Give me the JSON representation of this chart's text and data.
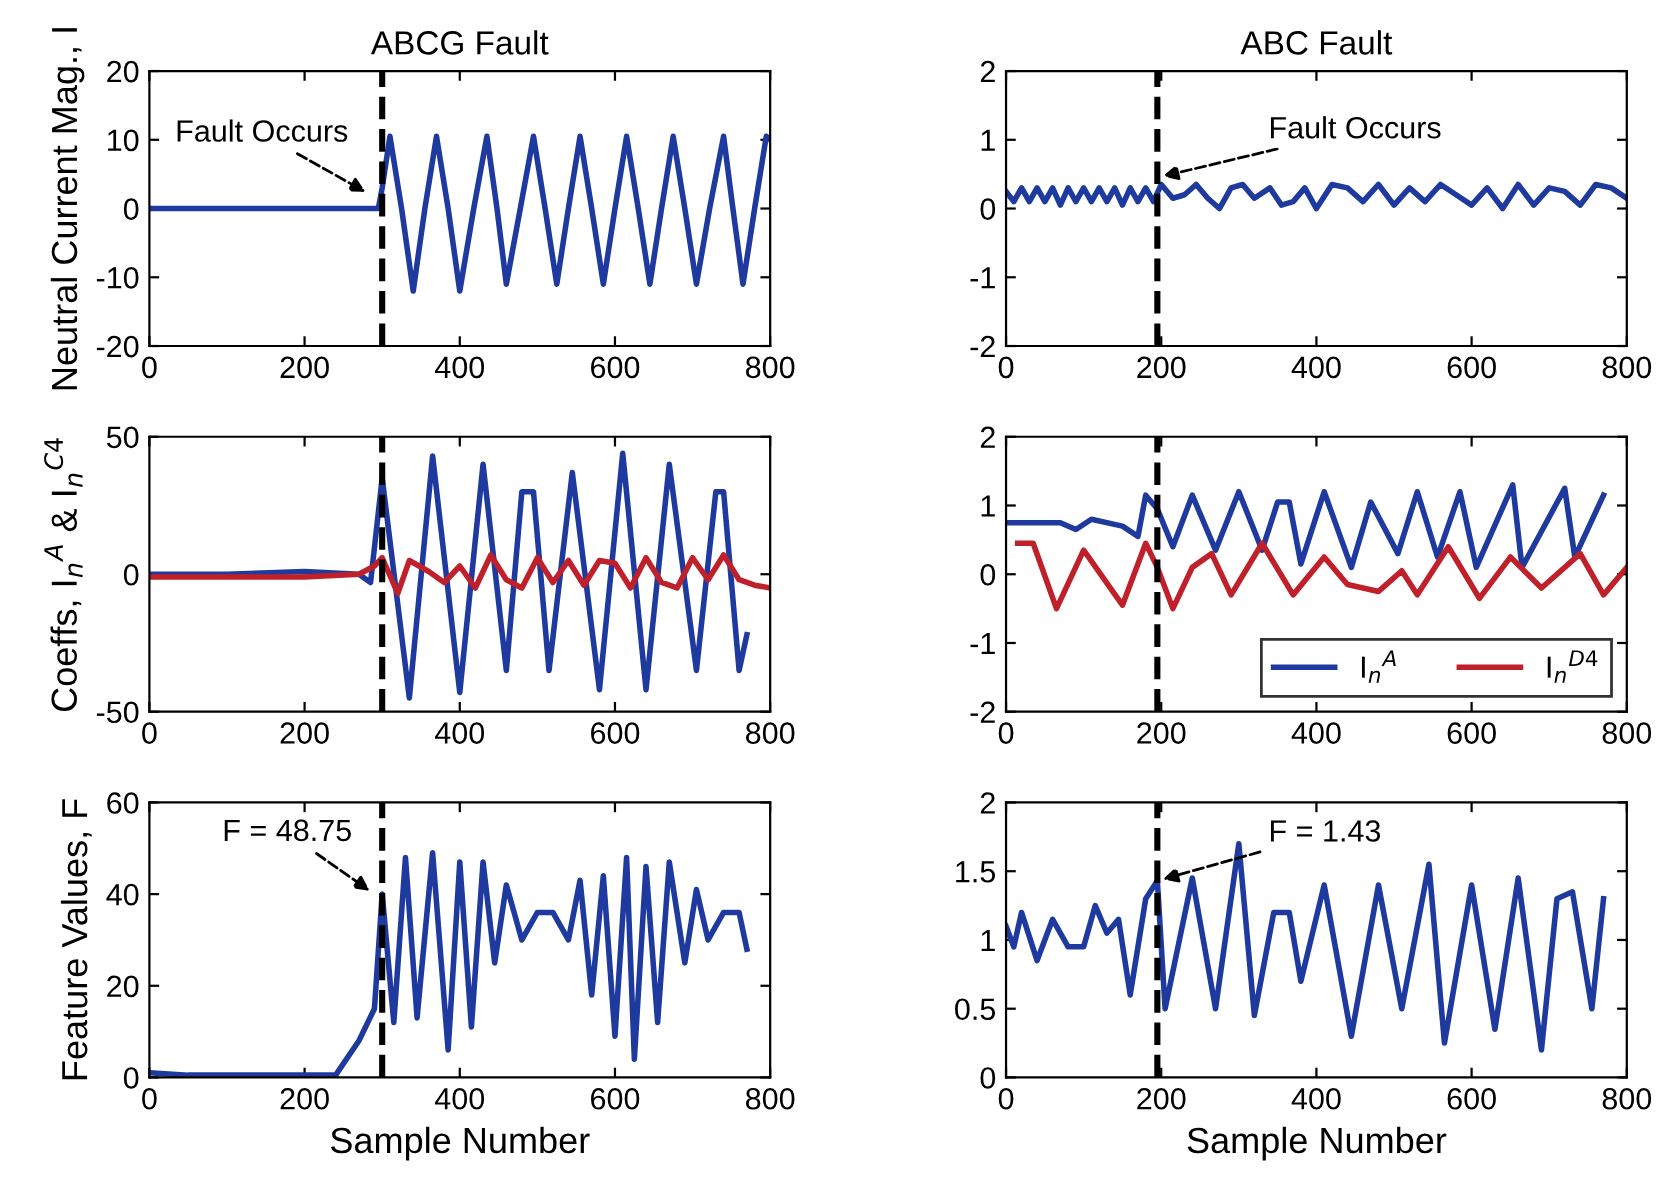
{
  "chart_data": [
    {
      "type": "line",
      "title": "ABCG Fault",
      "ylabel": "Neutral Current Mag., I",
      "xlim": [
        0,
        800
      ],
      "ylim": [
        -20,
        20
      ],
      "xticks": [
        0,
        200,
        400,
        600,
        800
      ],
      "yticks": [
        -20,
        -10,
        0,
        10,
        20
      ],
      "grid": false,
      "legend": false,
      "series": [
        {
          "color": "#1f3a9e",
          "x": [
            0,
            100,
            200,
            295,
            300,
            310,
            325,
            340,
            355,
            370,
            385,
            400,
            418,
            435,
            448,
            460,
            478,
            495,
            510,
            525,
            540,
            555,
            570,
            585,
            600,
            615,
            630,
            645,
            660,
            675,
            690,
            705,
            722,
            740,
            752,
            765,
            780,
            795,
            800
          ],
          "values": [
            0,
            0,
            0,
            0,
            3,
            10.5,
            0,
            -12,
            0,
            10.5,
            0,
            -12,
            0,
            10.5,
            0,
            -11,
            0,
            10.5,
            0,
            -11,
            0,
            10.5,
            0,
            -11,
            0,
            10.5,
            0,
            -11,
            0,
            10.5,
            0,
            -11,
            0,
            10.5,
            0,
            -11,
            0,
            10.5,
            10
          ]
        }
      ],
      "ref_lines": [
        {
          "axis": "x",
          "value": 300,
          "color": "#000000",
          "line_style": "dashed"
        }
      ],
      "annotations": [
        {
          "text": "Fault Occurs",
          "x": 285,
          "y": 2
        }
      ]
    },
    {
      "type": "line",
      "title": "ABC Fault",
      "xlim": [
        0,
        800
      ],
      "ylim": [
        -2,
        2
      ],
      "xticks": [
        0,
        200,
        400,
        600,
        800
      ],
      "yticks": [
        -2,
        -1,
        0,
        1,
        2
      ],
      "grid": false,
      "legend": false,
      "series": [
        {
          "color": "#1f3a9e",
          "x": [
            0,
            10,
            20,
            30,
            40,
            50,
            60,
            70,
            80,
            90,
            100,
            110,
            120,
            130,
            140,
            150,
            160,
            170,
            180,
            190,
            200,
            215,
            230,
            245,
            260,
            275,
            290,
            305,
            320,
            340,
            355,
            370,
            385,
            400,
            420,
            440,
            460,
            480,
            500,
            520,
            540,
            560,
            580,
            600,
            620,
            640,
            660,
            680,
            700,
            720,
            740,
            760,
            780,
            800
          ],
          "values": [
            0.25,
            0.1,
            0.3,
            0.1,
            0.3,
            0.1,
            0.3,
            0.05,
            0.3,
            0.1,
            0.3,
            0.1,
            0.3,
            0.1,
            0.3,
            0.05,
            0.3,
            0.1,
            0.3,
            0.1,
            0.35,
            0.15,
            0.2,
            0.35,
            0.15,
            0.0,
            0.3,
            0.35,
            0.15,
            0.3,
            0.05,
            0.1,
            0.3,
            0.0,
            0.35,
            0.3,
            0.1,
            0.35,
            0.05,
            0.3,
            0.1,
            0.35,
            0.2,
            0.05,
            0.3,
            0.0,
            0.35,
            0.05,
            0.3,
            0.25,
            0.05,
            0.35,
            0.3,
            0.15
          ]
        }
      ],
      "ref_lines": [
        {
          "axis": "x",
          "value": 195,
          "color": "#000000",
          "line_style": "dashed"
        }
      ],
      "annotations": [
        {
          "text": "Fault Occurs",
          "x": 195,
          "y": 0.45
        }
      ]
    },
    {
      "type": "line",
      "ylabel": "Coeffs, I$_{n}$$^{A}$ & I$_{n}$$^{C4}$",
      "xlim": [
        0,
        800
      ],
      "ylim": [
        -50,
        50
      ],
      "xticks": [
        0,
        200,
        400,
        600,
        800
      ],
      "yticks": [
        -50,
        0,
        50
      ],
      "grid": false,
      "legend": false,
      "series": [
        {
          "color": "#1f3a9e",
          "x": [
            0,
            100,
            200,
            270,
            285,
            300,
            335,
            365,
            400,
            430,
            460,
            480,
            495,
            515,
            545,
            580,
            610,
            640,
            670,
            705,
            730,
            740,
            760,
            770
          ],
          "values": [
            0,
            0,
            1,
            0,
            -3,
            35,
            -45,
            43,
            -43,
            40,
            -35,
            30,
            30,
            -35,
            37,
            -42,
            44,
            -42,
            40,
            -35,
            30,
            30,
            -35,
            -22
          ]
        },
        {
          "color": "#c0202a",
          "x": [
            0,
            100,
            200,
            270,
            290,
            300,
            320,
            335,
            360,
            380,
            400,
            420,
            440,
            460,
            480,
            500,
            520,
            540,
            560,
            580,
            600,
            620,
            640,
            660,
            680,
            700,
            720,
            740,
            760,
            780,
            800
          ],
          "values": [
            -1,
            -1,
            -1,
            0,
            3,
            6,
            -7,
            5,
            1,
            -3,
            3,
            -5,
            7,
            -2,
            -5,
            6,
            -3,
            5,
            -4,
            5,
            4,
            -5,
            6,
            -3,
            -5,
            6,
            -2,
            7,
            -2,
            -4,
            -5
          ]
        }
      ],
      "ref_lines": [
        {
          "axis": "x",
          "value": 300,
          "color": "#000000",
          "line_style": "dashed"
        }
      ]
    },
    {
      "type": "line",
      "xlim": [
        0,
        800
      ],
      "ylim": [
        -2,
        2
      ],
      "xticks": [
        0,
        200,
        400,
        600,
        800
      ],
      "yticks": [
        -2,
        -1,
        0,
        1,
        2
      ],
      "grid": false,
      "legend": "lower right",
      "series": [
        {
          "name": "I$_{n}$$^{A}$",
          "color": "#1f3a9e",
          "x": [
            0,
            70,
            90,
            110,
            150,
            170,
            180,
            195,
            215,
            240,
            270,
            300,
            330,
            350,
            365,
            380,
            410,
            445,
            470,
            505,
            530,
            556,
            585,
            606,
            653,
            665,
            720,
            733,
            770
          ],
          "values": [
            0.75,
            0.75,
            0.65,
            0.8,
            0.7,
            0.55,
            1.15,
            0.95,
            0.4,
            1.15,
            0.35,
            1.2,
            0.35,
            1.05,
            1.05,
            0.15,
            1.2,
            0.1,
            1.05,
            0.3,
            1.2,
            0.25,
            1.2,
            0.1,
            1.3,
            0.1,
            1.25,
            0.25,
            1.15
          ]
        },
        {
          "name": "I$_{n}$$^{D4}$",
          "color": "#c0202a",
          "x": [
            15,
            35,
            65,
            100,
            150,
            180,
            195,
            215,
            240,
            265,
            290,
            330,
            370,
            410,
            440,
            480,
            510,
            530,
            570,
            610,
            650,
            690,
            740,
            770,
            800
          ],
          "values": [
            0.45,
            0.45,
            -0.5,
            0.35,
            -0.45,
            0.45,
            0.1,
            -0.5,
            0.1,
            0.3,
            -0.3,
            0.45,
            -0.3,
            0.25,
            -0.15,
            -0.25,
            0.05,
            -0.3,
            0.4,
            -0.35,
            0.25,
            -0.2,
            0.3,
            -0.3,
            0.1
          ]
        }
      ],
      "ref_lines": [
        {
          "axis": "x",
          "value": 195,
          "color": "#000000",
          "line_style": "dashed"
        }
      ]
    },
    {
      "type": "line",
      "xlabel": "Sample Number",
      "ylabel": "Feature Values, F",
      "xlim": [
        0,
        800
      ],
      "ylim": [
        0,
        60
      ],
      "xticks": [
        0,
        200,
        400,
        600,
        800
      ],
      "yticks": [
        0,
        20,
        40,
        60
      ],
      "grid": false,
      "legend": false,
      "series": [
        {
          "color": "#1f3a9e",
          "x": [
            0,
            50,
            100,
            150,
            200,
            240,
            270,
            290,
            300,
            315,
            330,
            345,
            365,
            385,
            400,
            415,
            430,
            445,
            460,
            480,
            500,
            520,
            540,
            555,
            570,
            585,
            600,
            615,
            625,
            640,
            655,
            670,
            690,
            705,
            720,
            740,
            760,
            770
          ],
          "values": [
            1,
            0.5,
            0.5,
            0.5,
            0.5,
            0.5,
            8,
            15,
            40,
            12,
            48,
            13,
            49,
            6,
            47,
            11,
            47,
            25,
            42,
            30,
            36,
            36,
            30,
            43,
            18,
            44,
            9,
            48,
            4,
            46,
            12,
            47,
            25,
            41,
            30,
            36,
            36,
            28
          ]
        }
      ],
      "ref_lines": [
        {
          "axis": "x",
          "value": 300,
          "color": "#000000",
          "line_style": "dashed"
        }
      ],
      "annotations": [
        {
          "text": "F = 48.75",
          "x": 290,
          "y": 40
        }
      ]
    },
    {
      "type": "line",
      "xlabel": "Sample Number",
      "xlim": [
        0,
        800
      ],
      "ylim": [
        0,
        2
      ],
      "xticks": [
        0,
        200,
        400,
        600,
        800
      ],
      "yticks": [
        0,
        0.5,
        1,
        1.5,
        2
      ],
      "grid": false,
      "legend": false,
      "series": [
        {
          "color": "#1f3a9e",
          "x": [
            0,
            10,
            20,
            40,
            60,
            80,
            100,
            115,
            130,
            145,
            160,
            180,
            195,
            205,
            240,
            270,
            300,
            320,
            345,
            365,
            380,
            410,
            445,
            480,
            510,
            545,
            565,
            600,
            630,
            660,
            690,
            710,
            730,
            755,
            770
          ],
          "values": [
            1.1,
            0.95,
            1.2,
            0.85,
            1.15,
            0.95,
            0.95,
            1.25,
            1.05,
            1.15,
            0.6,
            1.3,
            1.43,
            0.5,
            1.45,
            0.5,
            1.7,
            0.45,
            1.2,
            1.2,
            0.7,
            1.4,
            0.3,
            1.4,
            0.5,
            1.55,
            0.25,
            1.4,
            0.35,
            1.45,
            0.2,
            1.3,
            1.35,
            0.5,
            1.3
          ]
        }
      ],
      "ref_lines": [
        {
          "axis": "x",
          "value": 195,
          "color": "#000000",
          "line_style": "dashed"
        }
      ],
      "annotations": [
        {
          "text": "F = 1.43",
          "x": 195,
          "y": 1.43
        }
      ]
    }
  ]
}
